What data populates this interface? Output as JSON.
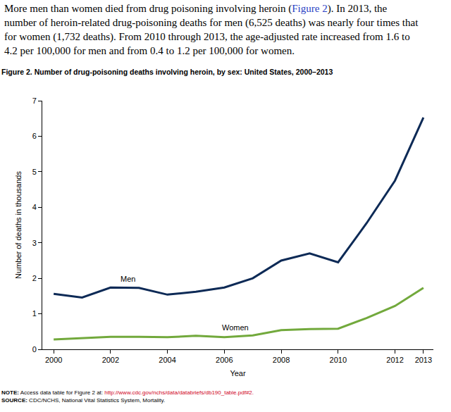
{
  "paragraph": [
    [
      {
        "text": "More men than women died from drug poisoning involving heroin ("
      },
      {
        "text": "Figure 2",
        "color": "#2a3fc4"
      },
      {
        "text": "). In 2013, the"
      }
    ],
    [
      {
        "text": "number of heroin-related drug-poisoning deaths for men (6,525 deaths) was nearly four times that"
      }
    ],
    [
      {
        "text": "for women (1,732 deaths). From 2010 through 2013, the age-adjusted rate increased from 1.6 to"
      }
    ],
    [
      {
        "text": "4.2 per 100,000 for men and from 0.4 to 1.2 per 100,000 for women."
      }
    ]
  ],
  "figure_title": "Figure 2. Number of drug-poisoning deaths involving heroin, by sex: United States, 2000–2013",
  "chart_data": {
    "type": "line",
    "x_label": "Year",
    "y_label": "Number of deaths in thousands",
    "x": [
      2000,
      2001,
      2002,
      2003,
      2004,
      2005,
      2006,
      2007,
      2008,
      2009,
      2010,
      2011,
      2012,
      2013
    ],
    "series": [
      {
        "name": "Men",
        "color": "#0d2a56",
        "values": [
          1.56,
          1.46,
          1.74,
          1.73,
          1.54,
          1.62,
          1.74,
          2.0,
          2.5,
          2.7,
          2.45,
          3.55,
          4.75,
          6.525
        ]
      },
      {
        "name": "Women",
        "color": "#72a93c",
        "values": [
          0.28,
          0.31,
          0.35,
          0.35,
          0.34,
          0.38,
          0.34,
          0.39,
          0.54,
          0.57,
          0.58,
          0.88,
          1.22,
          1.732
        ]
      }
    ],
    "xlim": [
      1999.6,
      2013.35
    ],
    "xticks": [
      2000,
      2002,
      2004,
      2006,
      2008,
      2010,
      2012,
      2013
    ],
    "ylim": [
      0,
      7
    ],
    "yticks": [
      0,
      1,
      2,
      3,
      4,
      5,
      6,
      7
    ],
    "grid": false,
    "annotations": [
      {
        "text": "Men",
        "x": 2002.6,
        "y": 1.98
      },
      {
        "text": "Women",
        "x": 2006.4,
        "y": 0.61
      }
    ]
  },
  "note": {
    "label": "NOTE:",
    "text": "Access data table for Figure 2 at:",
    "link": "http://www.cdc.gov/nchs/data/databriefs/db190_table.pdf#2.",
    "link_color": "#d0021b"
  },
  "source": {
    "label": "SOURCE:",
    "text": "CDC/NCHS, National Vital Statistics System, Mortality."
  }
}
